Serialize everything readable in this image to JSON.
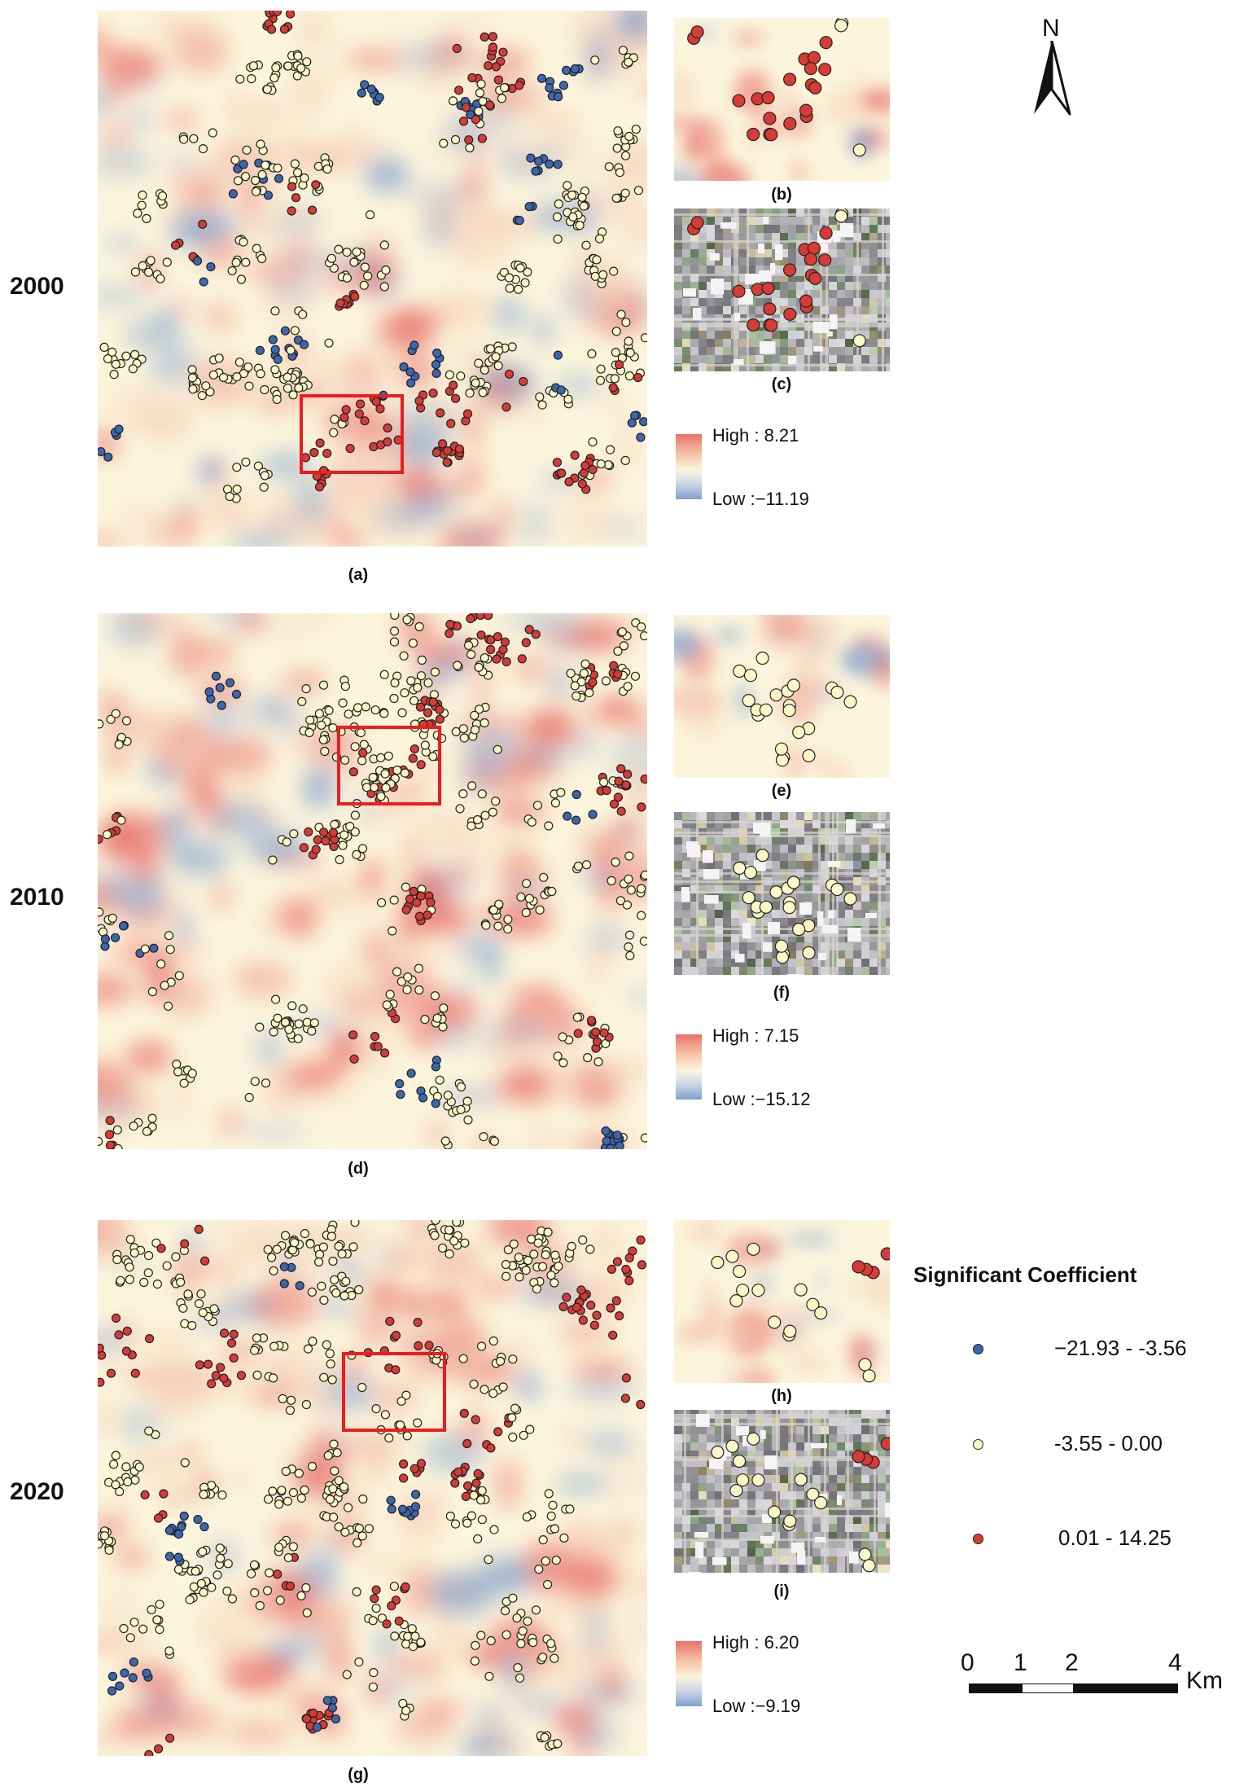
{
  "years": [
    "2000",
    "2010",
    "2020"
  ],
  "captions": [
    "(a)",
    "(b)",
    "(c)",
    "(d)",
    "(e)",
    "(f)",
    "(g)",
    "(h)",
    "(i)"
  ],
  "ramps": [
    {
      "high": "High : 8.21",
      "low": "Low :−11.19"
    },
    {
      "high": "High : 7.15",
      "low": "Low :−15.12"
    },
    {
      "high": "High : 6.20",
      "low": "Low :−9.19"
    }
  ],
  "legend": {
    "title": "Significant Coefficient",
    "items": [
      {
        "label": "−21.93 - -3.56",
        "color": "#3b66b0"
      },
      {
        "label": "-3.55 - 0.00",
        "color": "#fbf7c6"
      },
      {
        "label": "0.01 - 14.25",
        "color": "#d63b35"
      }
    ]
  },
  "north": {
    "label": "N",
    "icon": "north-arrow-icon"
  },
  "scalebar": {
    "ticks": [
      "0",
      "1",
      "2",
      "4"
    ],
    "unit": "Km"
  },
  "colors": {
    "high": "#e9706b",
    "mid": "#fbf5dc",
    "low": "#7f9fcc",
    "highlight": "#ee1c1c"
  }
}
